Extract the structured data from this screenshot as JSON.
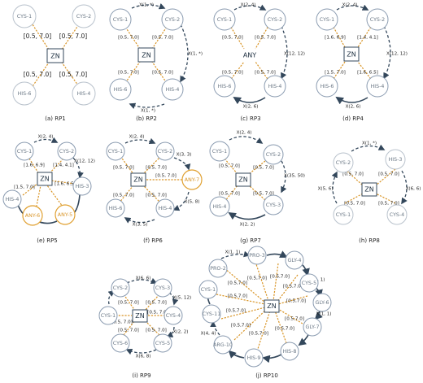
{
  "captions": [
    "(a) RP1",
    "(b) RP2",
    "(c) RP3",
    "(d) RP4",
    "(e) RP5",
    "(f) RP6",
    "(g) RP7",
    "(h) RP8",
    "(i) RP9",
    "(j) RP10"
  ],
  "center": {
    "zn": "ZN",
    "any": "ANY"
  },
  "nodes": {
    "cys1": "CYS-1",
    "cys2": "CYS-2",
    "his6": "HIS-6",
    "his4": "HIS-4",
    "his3": "HIS-3",
    "any6": "ANY-6",
    "any5": "ANY-5",
    "any7": "ANY-7",
    "cys3": "CYS-3",
    "cys4": "CYS-4",
    "cys5": "CYS-5",
    "cys6": "CYS-6",
    "pro2": "PRO-2",
    "pro3": "PRO-3",
    "gly4": "GLY-4",
    "gly6": "GLY-6",
    "gly7": "GLY-7",
    "his8": "HIS-8",
    "his9": "HIS-9",
    "arg10": "ARG-10",
    "cys11": "CYS-11"
  },
  "labels": {
    "r0570": "[0.5, 7.0]",
    "r0570s": "[0.5,7.0]",
    "r1669": "[1.6, 6.9]",
    "r1441": "[1.4, 4.1]",
    "r1570": "[1.5, 7.0]",
    "r1665": "[1.6, 6.5]",
    "r1665b": "[1.6, 6.5]",
    "x1s": "X(1, *)",
    "x24": "X(2, 4)",
    "x1212": "X(12, 12)",
    "x26": "X(2, 6)",
    "x33": "X(3, 3)",
    "x58": "X(5, 8)",
    "x35": "X(3, 5)",
    "x3550": "X(35, 50)",
    "x22": "X(2, 2)",
    "x56": "X(5, 6)",
    "x66": "X(6, 6)",
    "x512": "X(5, 12)",
    "x68": "X(6, 8)",
    "x11": "X(1, 1)",
    "x44": "X(4, 4)"
  }
}
